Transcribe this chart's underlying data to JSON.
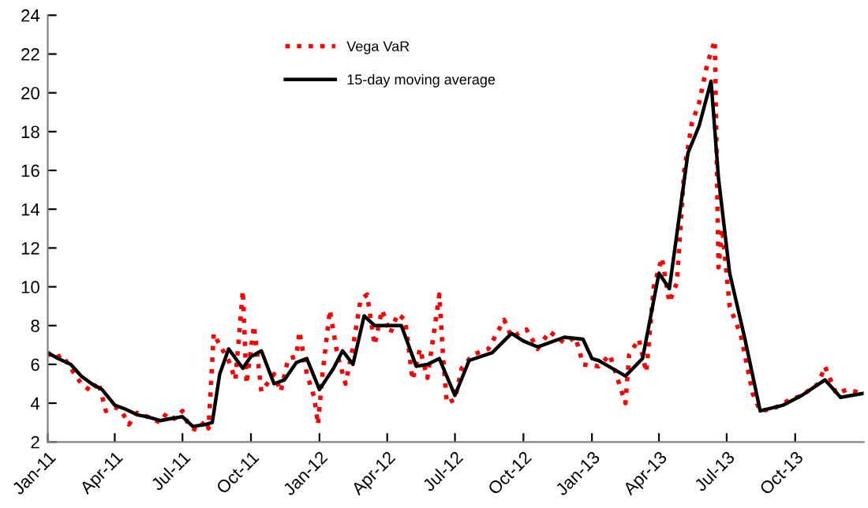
{
  "chart_data": {
    "type": "line",
    "xlim": [
      "2011-01-01",
      "2014-01-01"
    ],
    "ylim": [
      2,
      24
    ],
    "yticks": [
      2,
      4,
      6,
      8,
      10,
      12,
      14,
      16,
      18,
      20,
      22,
      24
    ],
    "xticks": [
      {
        "value": "2011-01-01",
        "label": "Jan-11"
      },
      {
        "value": "2011-04-01",
        "label": "Apr-11"
      },
      {
        "value": "2011-07-01",
        "label": "Jul-11"
      },
      {
        "value": "2011-10-01",
        "label": "Oct-11"
      },
      {
        "value": "2012-01-01",
        "label": "Jan-12"
      },
      {
        "value": "2012-04-01",
        "label": "Apr-12"
      },
      {
        "value": "2012-07-01",
        "label": "Jul-12"
      },
      {
        "value": "2012-10-01",
        "label": "Oct-12"
      },
      {
        "value": "2013-01-01",
        "label": "Jan-13"
      },
      {
        "value": "2013-04-01",
        "label": "Apr-13"
      },
      {
        "value": "2013-07-01",
        "label": "Jul-13"
      },
      {
        "value": "2013-10-01",
        "label": "Oct-13"
      }
    ],
    "grid": false,
    "legend": "top",
    "marker": "none",
    "series": [
      {
        "name": "Vega VaR",
        "color": "#ff0000",
        "line_style": "dotted",
        "x": [
          "2011-01-01",
          "2011-01-10",
          "2011-01-20",
          "2011-02-01",
          "2011-02-15",
          "2011-03-01",
          "2011-03-10",
          "2011-03-20",
          "2011-04-01",
          "2011-04-10",
          "2011-04-20",
          "2011-05-01",
          "2011-05-15",
          "2011-06-01",
          "2011-06-10",
          "2011-06-20",
          "2011-07-01",
          "2011-07-10",
          "2011-07-20",
          "2011-08-01",
          "2011-08-05",
          "2011-08-12",
          "2011-08-20",
          "2011-09-01",
          "2011-09-10",
          "2011-09-20",
          "2011-09-25",
          "2011-10-05",
          "2011-10-15",
          "2011-11-01",
          "2011-11-10",
          "2011-11-20",
          "2011-12-01",
          "2011-12-05",
          "2011-12-15",
          "2011-12-25",
          "2011-12-30",
          "2012-01-05",
          "2012-01-15",
          "2012-01-25",
          "2012-02-05",
          "2012-02-15",
          "2012-02-25",
          "2012-03-05",
          "2012-03-15",
          "2012-03-25",
          "2012-04-05",
          "2012-04-15",
          "2012-04-25",
          "2012-05-05",
          "2012-05-15",
          "2012-05-25",
          "2012-06-10",
          "2012-06-15",
          "2012-06-20",
          "2012-07-01",
          "2012-07-10",
          "2012-07-25",
          "2012-08-15",
          "2012-09-05",
          "2012-09-15",
          "2012-10-05",
          "2012-10-20",
          "2012-11-05",
          "2012-11-25",
          "2012-12-10",
          "2012-12-20",
          "2013-01-10",
          "2013-01-25",
          "2013-02-15",
          "2013-02-20",
          "2013-03-05",
          "2013-03-15",
          "2013-03-25",
          "2013-04-05",
          "2013-04-15",
          "2013-04-25",
          "2013-05-05",
          "2013-05-15",
          "2013-05-25",
          "2013-06-05",
          "2013-06-15",
          "2013-06-20",
          "2013-06-25",
          "2013-07-05",
          "2013-07-20",
          "2013-08-05",
          "2013-08-15",
          "2013-09-01",
          "2013-09-20",
          "2013-10-10",
          "2013-11-01",
          "2013-11-10",
          "2013-11-25",
          "2013-12-10",
          "2013-12-31"
        ],
        "values": [
          6.6,
          6.3,
          6.5,
          5.8,
          5.0,
          4.6,
          5.1,
          3.6,
          3.8,
          3.6,
          2.9,
          3.5,
          3.3,
          3.0,
          3.5,
          3.2,
          3.6,
          2.8,
          2.6,
          3.1,
          2.7,
          7.6,
          7.0,
          6.2,
          5.2,
          9.8,
          5.0,
          8.0,
          4.6,
          5.5,
          4.6,
          6.3,
          6.4,
          7.7,
          5.5,
          4.3,
          2.9,
          5.5,
          8.8,
          6.5,
          5.0,
          6.9,
          9.3,
          9.6,
          7.0,
          8.8,
          7.6,
          8.6,
          8.3,
          5.2,
          6.8,
          5.3,
          9.6,
          6.4,
          4.0,
          4.2,
          5.8,
          6.5,
          6.8,
          8.3,
          7.4,
          7.8,
          6.8,
          7.7,
          7.1,
          7.4,
          6.0,
          5.9,
          6.5,
          4.0,
          6.5,
          7.3,
          5.6,
          10.0,
          11.5,
          9.2,
          10.2,
          16.0,
          18.4,
          19.5,
          21.5,
          22.7,
          11.0,
          13.0,
          9.0,
          7.5,
          4.5,
          3.6,
          3.7,
          4.1,
          4.4,
          5.0,
          5.9,
          4.5,
          4.7,
          4.5
        ]
      },
      {
        "name": "15-day moving average",
        "color": "#000000",
        "line_style": "solid",
        "x": [
          "2011-01-01",
          "2011-01-15",
          "2011-02-01",
          "2011-02-15",
          "2011-03-01",
          "2011-03-15",
          "2011-04-01",
          "2011-04-15",
          "2011-05-01",
          "2011-05-15",
          "2011-06-01",
          "2011-06-15",
          "2011-07-01",
          "2011-07-15",
          "2011-08-01",
          "2011-08-10",
          "2011-08-20",
          "2011-09-01",
          "2011-09-20",
          "2011-10-01",
          "2011-10-15",
          "2011-11-01",
          "2011-11-15",
          "2011-12-01",
          "2011-12-15",
          "2012-01-01",
          "2012-01-20",
          "2012-02-01",
          "2012-02-15",
          "2012-03-01",
          "2012-03-15",
          "2012-04-01",
          "2012-04-20",
          "2012-05-10",
          "2012-05-25",
          "2012-06-10",
          "2012-07-01",
          "2012-07-20",
          "2012-08-20",
          "2012-09-15",
          "2012-10-01",
          "2012-10-20",
          "2012-11-25",
          "2012-12-20",
          "2013-01-01",
          "2013-01-10",
          "2013-02-15",
          "2013-03-10",
          "2013-04-01",
          "2013-04-15",
          "2013-05-10",
          "2013-05-25",
          "2013-06-10",
          "2013-06-20",
          "2013-07-05",
          "2013-07-25",
          "2013-08-15",
          "2013-09-15",
          "2013-10-10",
          "2013-11-10",
          "2013-12-01",
          "2013-12-31"
        ],
        "values": [
          6.6,
          6.3,
          6.0,
          5.4,
          5.0,
          4.7,
          3.9,
          3.7,
          3.4,
          3.3,
          3.1,
          3.2,
          3.3,
          2.8,
          2.9,
          3.0,
          5.5,
          6.8,
          5.8,
          6.4,
          6.7,
          5.0,
          5.2,
          6.1,
          6.3,
          4.7,
          5.8,
          6.7,
          6.0,
          8.5,
          8.0,
          8.0,
          8.0,
          5.9,
          6.0,
          6.3,
          4.4,
          6.2,
          6.6,
          7.6,
          7.2,
          6.9,
          7.4,
          7.3,
          6.3,
          6.2,
          5.4,
          6.3,
          10.7,
          9.9,
          16.9,
          18.3,
          20.6,
          15.6,
          10.7,
          7.4,
          3.6,
          3.9,
          4.4,
          5.2,
          4.3,
          4.5
        ]
      }
    ]
  }
}
